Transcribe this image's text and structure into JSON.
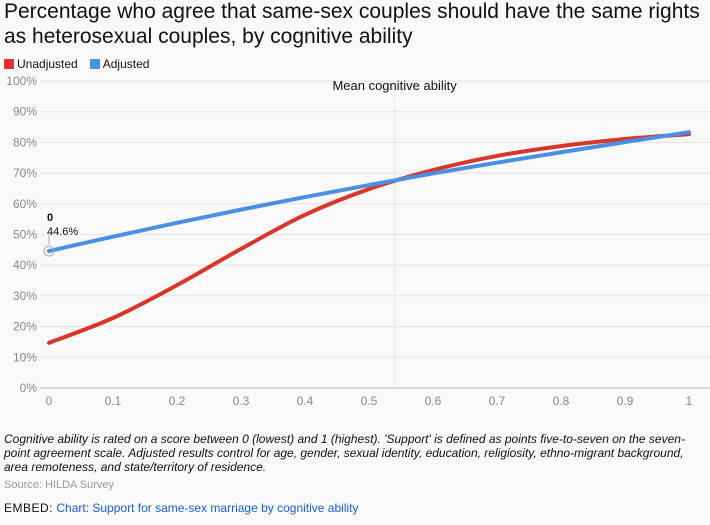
{
  "chart_data": {
    "type": "line",
    "title": "Percentage who agree that same-sex couples should have the same rights as heterosexual couples, by cognitive ability",
    "x": [
      0,
      0.1,
      0.2,
      0.3,
      0.4,
      0.5,
      0.6,
      0.7,
      0.8,
      0.9,
      1
    ],
    "x_ticks": [
      "0",
      "0.1",
      "0.2",
      "0.3",
      "0.4",
      "0.5",
      "0.6",
      "0.7",
      "0.8",
      "0.9",
      "1"
    ],
    "y_ticks": [
      "0%",
      "10%",
      "20%",
      "30%",
      "40%",
      "50%",
      "60%",
      "70%",
      "80%",
      "90%",
      "100%"
    ],
    "ylim": [
      0,
      100
    ],
    "xlim": [
      0,
      1
    ],
    "series": [
      {
        "name": "Unadjusted",
        "color": "#d9362b",
        "values": [
          14.7,
          22.8,
          33.5,
          45.3,
          56.4,
          64.8,
          71.0,
          75.6,
          78.8,
          81.1,
          82.7
        ]
      },
      {
        "name": "Adjusted",
        "color": "#4a90e2",
        "values": [
          44.6,
          49.3,
          53.8,
          58.1,
          62.2,
          66.1,
          69.9,
          73.4,
          76.8,
          80.1,
          83.3
        ]
      }
    ],
    "annotation": {
      "label": "Mean cognitive ability",
      "x": 0.54
    },
    "tooltip": {
      "x_label": "0",
      "value_label": "44.6%"
    },
    "legend": "top-left"
  },
  "note": "Cognitive ability is rated on a score between 0 (lowest) and 1 (highest). 'Support' is defined as points five-to-seven on the seven-point agreement scale. Adjusted results control for age, gender, sexual identity, education, religiosity, ethno-migrant background, area remoteness, and state/territory of residence.",
  "source": "Source: HILDA Survey",
  "embed": {
    "label": "EMBED:",
    "link": "Chart: Support for same-sex marriage by cognitive ability"
  }
}
